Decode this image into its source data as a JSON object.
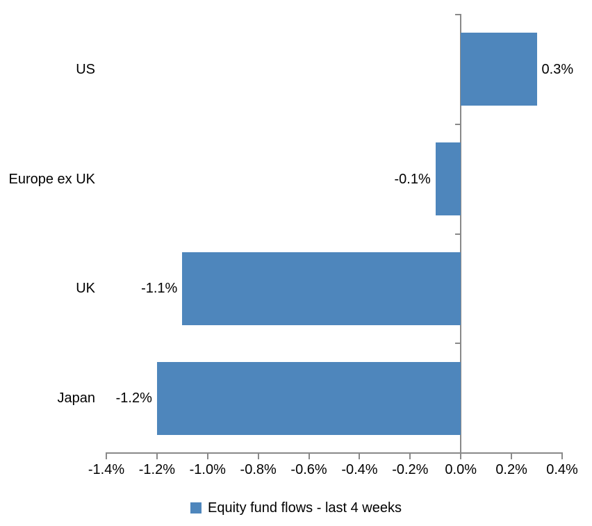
{
  "chart_data": {
    "type": "bar",
    "orientation": "horizontal",
    "title": "",
    "unit": "percent",
    "categories": [
      "US",
      "Europe ex UK",
      "UK",
      "Japan"
    ],
    "series": [
      {
        "name": "Equity fund flows - last 4 weeks",
        "values": [
          0.3,
          -0.1,
          -1.1,
          -1.2
        ],
        "data_labels": [
          "0.3%",
          "-0.1%",
          "-1.1%",
          "-1.2%"
        ],
        "color": "#4E86BC"
      }
    ],
    "xlabel": "",
    "ylabel": "",
    "xlim": [
      -1.4,
      0.4
    ],
    "x_tick_values": [
      -1.4,
      -1.2,
      -1.0,
      -0.8,
      -0.6,
      -0.4,
      -0.2,
      0.0,
      0.2,
      0.4
    ],
    "x_tick_labels": [
      "-1.4%",
      "-1.2%",
      "-1.0%",
      "-0.8%",
      "-0.6%",
      "-0.4%",
      "-0.2%",
      "0.0%",
      "0.2%",
      "0.4%"
    ],
    "grid": false,
    "legend_position": "bottom",
    "axis_color": "#898989",
    "text_color": "#000000",
    "background_color": "#FFFFFF"
  }
}
